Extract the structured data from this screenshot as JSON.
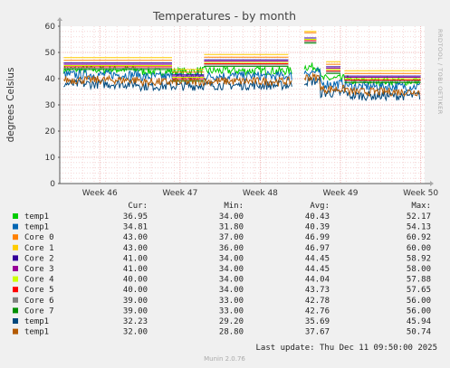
{
  "chart_data": {
    "type": "line",
    "title": "Temperatures - by month",
    "ylabel": "degrees Celsius",
    "side_text": "RRDTOOL / TOBI OETIKER",
    "ylim": [
      0,
      60
    ],
    "yticks": [
      0,
      10,
      20,
      30,
      40,
      50,
      60
    ],
    "xlim": [
      45.5,
      50.05
    ],
    "xticks": [
      {
        "label": "Week 46",
        "value": 46
      },
      {
        "label": "Week 47",
        "value": 47
      },
      {
        "label": "Week 48",
        "value": 48
      },
      {
        "label": "Week 49",
        "value": 49
      },
      {
        "label": "Week 50",
        "value": 50
      }
    ],
    "grid": true,
    "legend_headers": [
      "Cur:",
      "Min:",
      "Avg:",
      "Max:"
    ],
    "series": [
      {
        "name": "temp1",
        "color": "#00cc00",
        "cur": "36.95",
        "min": "34.00",
        "avg": "40.43",
        "max": "52.17",
        "kind": "noisy",
        "base": 43.0,
        "noise": 1.6
      },
      {
        "name": "temp1",
        "color": "#0066b3",
        "cur": "34.81",
        "min": "31.80",
        "avg": "40.39",
        "max": "54.13",
        "kind": "noisy",
        "base": 41.0,
        "noise": 1.8
      },
      {
        "name": "Core 0",
        "color": "#ff8000",
        "cur": "43.00",
        "min": "37.00",
        "avg": "46.99",
        "max": "60.92",
        "kind": "step"
      },
      {
        "name": "Core 1",
        "color": "#ffcc00",
        "cur": "43.00",
        "min": "36.00",
        "avg": "46.97",
        "max": "60.00",
        "kind": "step"
      },
      {
        "name": "Core 2",
        "color": "#330099",
        "cur": "41.00",
        "min": "34.00",
        "avg": "44.45",
        "max": "58.92",
        "kind": "step"
      },
      {
        "name": "Core 3",
        "color": "#990099",
        "cur": "41.00",
        "min": "34.00",
        "avg": "44.45",
        "max": "58.00",
        "kind": "step"
      },
      {
        "name": "Core 4",
        "color": "#ccff00",
        "cur": "40.00",
        "min": "34.00",
        "avg": "44.04",
        "max": "57.88",
        "kind": "step"
      },
      {
        "name": "Core 5",
        "color": "#ff0000",
        "cur": "40.00",
        "min": "34.00",
        "avg": "43.73",
        "max": "57.65",
        "kind": "step"
      },
      {
        "name": "Core 6",
        "color": "#808080",
        "cur": "39.00",
        "min": "33.00",
        "avg": "42.78",
        "max": "56.00",
        "kind": "step"
      },
      {
        "name": "Core 7",
        "color": "#008f00",
        "cur": "39.00",
        "min": "33.00",
        "avg": "42.76",
        "max": "56.00",
        "kind": "step"
      },
      {
        "name": "temp1",
        "color": "#00487d",
        "cur": "32.23",
        "min": "29.20",
        "avg": "35.69",
        "max": "45.94",
        "kind": "noisy",
        "base": 37.5,
        "noise": 1.8
      },
      {
        "name": "temp1",
        "color": "#b35a00",
        "cur": "32.00",
        "min": "28.80",
        "avg": "37.67",
        "max": "50.74",
        "kind": "noisy",
        "base": 39.0,
        "noise": 1.6
      }
    ],
    "last_update": "Last update: Thu Dec 11 09:50:00 2025",
    "version": "Munin 2.0.76"
  }
}
